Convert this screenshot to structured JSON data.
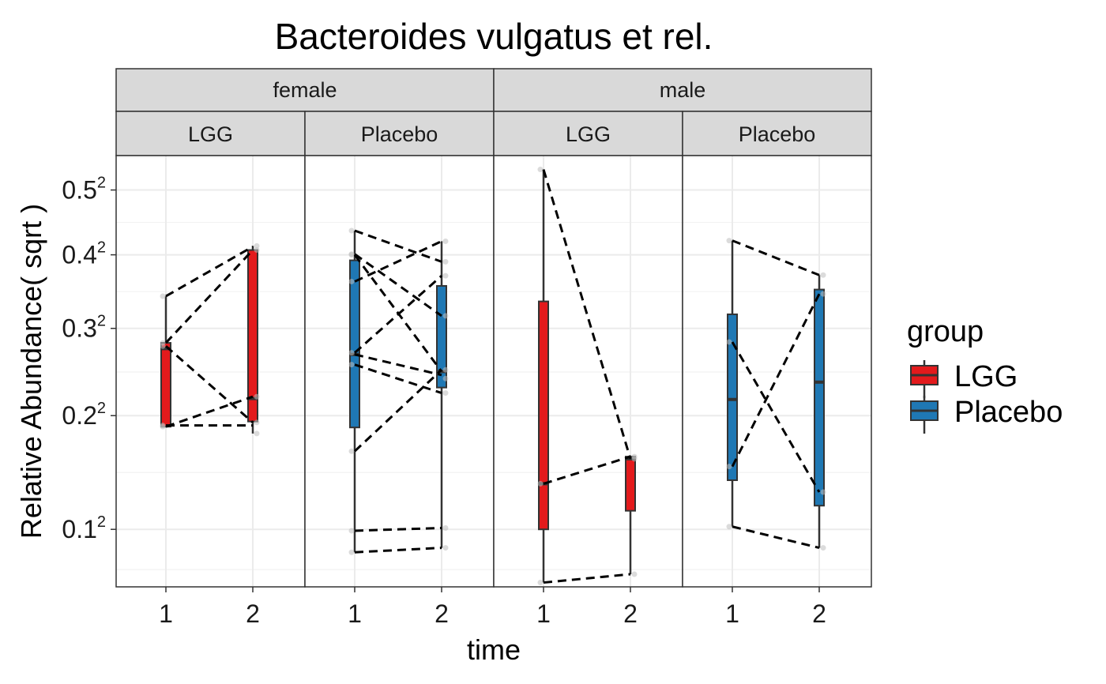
{
  "chart_data": {
    "type": "boxplot",
    "title": "Bacteroides vulgatus et rel.",
    "xlabel": "time",
    "ylabel": "Relative Abundance( sqrt )",
    "y_scale": "sqrt",
    "ylim": [
      0.0625,
      0.5576
    ],
    "y_ticks": [
      {
        "value": 0.1,
        "base": "0.1",
        "exp": "2"
      },
      {
        "value": 0.2,
        "base": "0.2",
        "exp": "2"
      },
      {
        "value": 0.3,
        "base": "0.3",
        "exp": "2"
      },
      {
        "value": 0.4,
        "base": "0.4",
        "exp": "2"
      },
      {
        "value": 0.5,
        "base": "0.5",
        "exp": "2"
      }
    ],
    "x_categories": [
      "1",
      "2"
    ],
    "grid": true,
    "legend": {
      "title": "group",
      "position": "right",
      "entries": [
        {
          "label": "LGG",
          "color": "#e31a1c"
        },
        {
          "label": "Placebo",
          "color": "#1f78b4"
        }
      ]
    },
    "facet_rows": [
      "female",
      "male"
    ],
    "panels": [
      {
        "sex": "female",
        "group": "LGG",
        "color": "#e31a1c",
        "boxes": [
          {
            "time": "1",
            "whisker_low": 0.1888,
            "q1": 0.1888,
            "median": 0.275,
            "q3": 0.282,
            "whisker_high": 0.342
          },
          {
            "time": "2",
            "whisker_low": 0.182,
            "q1": 0.194,
            "median": 0.218,
            "q3": 0.407,
            "whisker_high": 0.413
          }
        ],
        "points": [
          {
            "time": "1",
            "value": 0.1888
          },
          {
            "time": "1",
            "value": 0.19
          },
          {
            "time": "1",
            "value": 0.278
          },
          {
            "time": "1",
            "value": 0.282
          },
          {
            "time": "1",
            "value": 0.342
          },
          {
            "time": "2",
            "value": 0.182
          },
          {
            "time": "2",
            "value": 0.193
          },
          {
            "time": "2",
            "value": 0.22
          },
          {
            "time": "2",
            "value": 0.407
          },
          {
            "time": "2",
            "value": 0.413
          }
        ],
        "pairs": [
          [
            0.342,
            0.412
          ],
          [
            0.282,
            0.407
          ],
          [
            0.278,
            0.193
          ],
          [
            0.1888,
            0.22
          ],
          [
            0.19,
            0.19
          ]
        ]
      },
      {
        "sex": "female",
        "group": "Placebo",
        "color": "#1f78b4",
        "boxes": [
          {
            "time": "1",
            "whisker_low": 0.084,
            "q1": 0.188,
            "median": 0.268,
            "q3": 0.392,
            "whisker_high": 0.436
          },
          {
            "time": "2",
            "whisker_low": 0.087,
            "q1": 0.23,
            "median": 0.248,
            "q3": 0.356,
            "whisker_high": 0.42
          }
        ],
        "points": [
          {
            "time": "1",
            "value": 0.084
          },
          {
            "time": "1",
            "value": 0.099
          },
          {
            "time": "1",
            "value": 0.165
          },
          {
            "time": "1",
            "value": 0.256
          },
          {
            "time": "1",
            "value": 0.27
          },
          {
            "time": "1",
            "value": 0.362
          },
          {
            "time": "1",
            "value": 0.4
          },
          {
            "time": "1",
            "value": 0.401
          },
          {
            "time": "1",
            "value": 0.436
          },
          {
            "time": "2",
            "value": 0.087
          },
          {
            "time": "2",
            "value": 0.101
          },
          {
            "time": "2",
            "value": 0.224
          },
          {
            "time": "2",
            "value": 0.24
          },
          {
            "time": "2",
            "value": 0.25
          },
          {
            "time": "2",
            "value": 0.316
          },
          {
            "time": "2",
            "value": 0.37
          },
          {
            "time": "2",
            "value": 0.39
          },
          {
            "time": "2",
            "value": 0.42
          }
        ],
        "pairs": [
          [
            0.436,
            0.39
          ],
          [
            0.401,
            0.316
          ],
          [
            0.4,
            0.248
          ],
          [
            0.362,
            0.42
          ],
          [
            0.27,
            0.37
          ],
          [
            0.268,
            0.244
          ],
          [
            0.256,
            0.224
          ],
          [
            0.165,
            0.25
          ],
          [
            0.099,
            0.101
          ],
          [
            0.084,
            0.087
          ]
        ]
      },
      {
        "sex": "male",
        "group": "LGG",
        "color": "#e31a1c",
        "boxes": [
          {
            "time": "1",
            "whisker_low": 0.065,
            "q1": 0.1,
            "median": 0.136,
            "q3": 0.335,
            "whisker_high": 0.534
          },
          {
            "time": "2",
            "whisker_low": 0.07,
            "q1": 0.114,
            "median": 0.158,
            "q3": 0.16,
            "whisker_high": 0.16
          }
        ],
        "points": [
          {
            "time": "1",
            "value": 0.065
          },
          {
            "time": "1",
            "value": 0.136
          },
          {
            "time": "1",
            "value": 0.534
          },
          {
            "time": "2",
            "value": 0.07
          },
          {
            "time": "2",
            "value": 0.158
          },
          {
            "time": "2",
            "value": 0.16
          }
        ],
        "pairs": [
          [
            0.534,
            0.158
          ],
          [
            0.136,
            0.16
          ],
          [
            0.065,
            0.07
          ]
        ]
      },
      {
        "sex": "male",
        "group": "Placebo",
        "color": "#1f78b4",
        "boxes": [
          {
            "time": "1",
            "whisker_low": 0.102,
            "q1": 0.139,
            "median": 0.217,
            "q3": 0.318,
            "whisker_high": 0.421
          },
          {
            "time": "2",
            "whisker_low": 0.087,
            "q1": 0.118,
            "median": 0.236,
            "q3": 0.351,
            "whisker_high": 0.371
          }
        ],
        "points": [
          {
            "time": "1",
            "value": 0.102
          },
          {
            "time": "1",
            "value": 0.151
          },
          {
            "time": "1",
            "value": 0.283
          },
          {
            "time": "1",
            "value": 0.421
          },
          {
            "time": "2",
            "value": 0.087
          },
          {
            "time": "2",
            "value": 0.129
          },
          {
            "time": "2",
            "value": 0.345
          },
          {
            "time": "2",
            "value": 0.371
          }
        ],
        "pairs": [
          [
            0.421,
            0.371
          ],
          [
            0.283,
            0.129
          ],
          [
            0.151,
            0.345
          ],
          [
            0.102,
            0.087
          ]
        ]
      }
    ]
  }
}
